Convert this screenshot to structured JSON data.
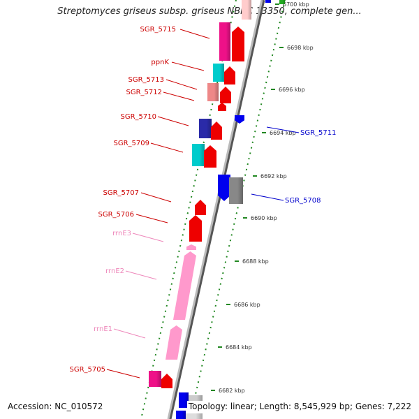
{
  "title": "Streptomyces griseus subsp. griseus NBRC 13350, complete gen...",
  "footer": {
    "accession": "Accession: NC_010572",
    "summary": "Topology: linear; Length: 8,545,929 bp; Genes: 7,222"
  },
  "scale": {
    "unit": "kbp",
    "ticks": [
      {
        "kbp": 6700,
        "label": "6700 kbp"
      },
      {
        "kbp": 6698,
        "label": "6698 kbp"
      },
      {
        "kbp": 6696,
        "label": "6696 kbp"
      },
      {
        "kbp": 6694,
        "label": "6694 kbp"
      },
      {
        "kbp": 6692,
        "label": "6692 kbp"
      },
      {
        "kbp": 6690,
        "label": "6690 kbp"
      },
      {
        "kbp": 6688,
        "label": "6688 kbp"
      },
      {
        "kbp": 6686,
        "label": "6686 kbp"
      },
      {
        "kbp": 6684,
        "label": "6684 kbp"
      },
      {
        "kbp": 6682,
        "label": "6682 kbp"
      }
    ]
  },
  "gene_labels": [
    {
      "label": "SGR_5715",
      "strand": "forward",
      "color": "#cc0000"
    },
    {
      "label": "ppnK",
      "strand": "forward",
      "color": "#cc0000"
    },
    {
      "label": "SGR_5713",
      "strand": "forward",
      "color": "#cc0000"
    },
    {
      "label": "SGR_5712",
      "strand": "forward",
      "color": "#cc0000"
    },
    {
      "label": "SGR_5711",
      "strand": "reverse",
      "color": "#0000cc"
    },
    {
      "label": "SGR_5710",
      "strand": "forward",
      "color": "#cc0000"
    },
    {
      "label": "SGR_5709",
      "strand": "forward",
      "color": "#cc0000"
    },
    {
      "label": "SGR_5708",
      "strand": "reverse",
      "color": "#0000cc"
    },
    {
      "label": "SGR_5707",
      "strand": "forward",
      "color": "#cc0000"
    },
    {
      "label": "SGR_5706",
      "strand": "forward",
      "color": "#cc0000"
    },
    {
      "label": "rrnE3",
      "strand": "forward",
      "color": "#ee88bb"
    },
    {
      "label": "rrnE2",
      "strand": "forward",
      "color": "#ee88bb"
    },
    {
      "label": "rrnE1",
      "strand": "forward",
      "color": "#ee88bb"
    },
    {
      "label": "SGR_5705",
      "strand": "forward",
      "color": "#cc0000"
    }
  ],
  "colors": {
    "forward_cds": "#ee0000",
    "reverse_cds": "#0000ee",
    "cog_magenta": "#ee1188",
    "cog_cyan": "#00cccc",
    "cog_salmon": "#ee8888",
    "cog_navy": "#2a2aa8",
    "cog_grey": "#888888",
    "rrna": "#ff99cc",
    "axis": "#888888",
    "dots": "#228822"
  }
}
